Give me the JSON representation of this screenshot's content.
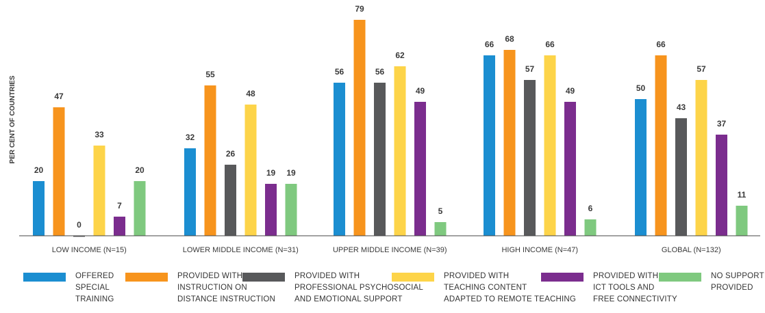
{
  "chart_data": {
    "type": "bar",
    "ylabel": "PER CENT OF COUNTRIES",
    "xlabel": "",
    "ylim": [
      0,
      80
    ],
    "grid": false,
    "legend_placement": "bottom",
    "categories": [
      "LOW INCOME (N=15)",
      "LOWER MIDDLE INCOME (N=31)",
      "UPPER MIDDLE INCOME (N=39)",
      "HIGH INCOME (N=47)",
      "GLOBAL (N=132)"
    ],
    "series": [
      {
        "name": "OFFERED SPECIAL TRAINING",
        "color": "#1b8ed1",
        "values": [
          20,
          32,
          56,
          66,
          50
        ]
      },
      {
        "name": "PROVIDED WITH INSTRUCTION ON DISTANCE INSTRUCTION",
        "color": "#f7941d",
        "values": [
          47,
          55,
          79,
          68,
          66
        ]
      },
      {
        "name": "PROVIDED WITH PROFESSIONAL PSYCHOSOCIAL AND EMOTIONAL SUPPORT",
        "color": "#58595b",
        "values": [
          0,
          26,
          56,
          57,
          43
        ]
      },
      {
        "name": "PROVIDED WITH TEACHING CONTENT ADAPTED TO REMOTE TEACHING",
        "color": "#fdd449",
        "values": [
          33,
          48,
          62,
          66,
          57
        ]
      },
      {
        "name": "PROVIDED WITH ICT TOOLS AND FREE CONNECTIVITY",
        "color": "#7b2d8e",
        "values": [
          7,
          19,
          49,
          49,
          37
        ]
      },
      {
        "name": "NO SUPPORT PROVIDED",
        "color": "#7fc97f",
        "values": [
          20,
          19,
          5,
          6,
          11
        ]
      }
    ]
  },
  "legend": [
    {
      "text": "OFFERED\nSPECIAL\nTRAINING",
      "color": "#1b8ed1"
    },
    {
      "text": "PROVIDED WITH\nINSTRUCTION ON\nDISTANCE INSTRUCTION",
      "color": "#f7941d"
    },
    {
      "text": "PROVIDED WITH\nPROFESSIONAL PSYCHOSOCIAL\nAND EMOTIONAL SUPPORT",
      "color": "#58595b"
    },
    {
      "text": "PROVIDED WITH\nTEACHING CONTENT\nADAPTED TO REMOTE TEACHING",
      "color": "#fdd449"
    },
    {
      "text": "PROVIDED WITH\nICT TOOLS AND\nFREE CONNECTIVITY",
      "color": "#7b2d8e"
    },
    {
      "text": "NO SUPPORT\nPROVIDED",
      "color": "#7fc97f"
    }
  ]
}
